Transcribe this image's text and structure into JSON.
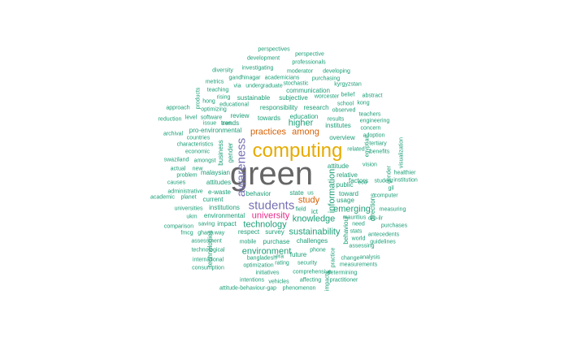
{
  "colors": {
    "teal": "#1b9e77",
    "grey": "#666666",
    "orange": "#d95f02",
    "gold": "#e6ab02",
    "purple": "#7570b3",
    "magenta": "#e7298a"
  },
  "words": [
    {
      "text": "green",
      "color": "grey"
    },
    {
      "text": "computing",
      "color": "gold"
    },
    {
      "text": "awareness",
      "color": "purple"
    },
    {
      "text": "students",
      "color": "purple"
    },
    {
      "text": "university",
      "color": "magenta"
    },
    {
      "text": "study",
      "color": "orange"
    },
    {
      "text": "practices",
      "color": "orange"
    },
    {
      "text": "among",
      "color": "orange"
    },
    {
      "text": "information",
      "color": "teal"
    },
    {
      "text": "technology",
      "color": "teal"
    },
    {
      "text": "knowledge",
      "color": "teal"
    },
    {
      "text": "sustainability",
      "color": "teal"
    },
    {
      "text": "environment",
      "color": "teal"
    },
    {
      "text": "emerging",
      "color": "teal"
    },
    {
      "text": "higher",
      "color": "teal"
    },
    {
      "text": "education",
      "color": "teal"
    },
    {
      "text": "institutes",
      "color": "teal"
    },
    {
      "text": "overview",
      "color": "teal"
    },
    {
      "text": "attitude",
      "color": "teal"
    },
    {
      "text": "relative",
      "color": "teal"
    },
    {
      "text": "public",
      "color": "teal"
    },
    {
      "text": "factors",
      "color": "teal"
    },
    {
      "text": "toward",
      "color": "teal"
    },
    {
      "text": "usage",
      "color": "teal"
    },
    {
      "text": "behavior",
      "color": "teal"
    },
    {
      "text": "state",
      "color": "teal"
    },
    {
      "text": "us",
      "color": "teal"
    },
    {
      "text": "ict",
      "color": "teal"
    },
    {
      "text": "review",
      "color": "teal"
    },
    {
      "text": "towards",
      "color": "teal"
    },
    {
      "text": "trends",
      "color": "teal"
    },
    {
      "text": "pro-environmental",
      "color": "teal"
    },
    {
      "text": "malaysian",
      "color": "teal"
    },
    {
      "text": "attitudes",
      "color": "teal"
    },
    {
      "text": "e-waste",
      "color": "teal"
    },
    {
      "text": "current",
      "color": "teal"
    },
    {
      "text": "institutions",
      "color": "teal"
    },
    {
      "text": "environmental",
      "color": "teal"
    },
    {
      "text": "impact",
      "color": "teal"
    },
    {
      "text": "respect",
      "color": "teal"
    },
    {
      "text": "survey",
      "color": "teal"
    },
    {
      "text": "purchase",
      "color": "teal"
    },
    {
      "text": "challenges",
      "color": "teal"
    },
    {
      "text": "future",
      "color": "teal"
    },
    {
      "text": "responsibility",
      "color": "teal"
    },
    {
      "text": "research",
      "color": "teal"
    },
    {
      "text": "sustainable",
      "color": "teal"
    },
    {
      "text": "subjective",
      "color": "teal"
    },
    {
      "text": "communication",
      "color": "teal"
    },
    {
      "text": "business",
      "color": "teal"
    },
    {
      "text": "gender",
      "color": "teal"
    },
    {
      "text": "directions",
      "color": "teal"
    },
    {
      "text": "behaviour",
      "color": "teal"
    },
    {
      "text": "technologies",
      "color": "teal"
    },
    {
      "text": "perspectives",
      "color": "teal"
    },
    {
      "text": "perspective",
      "color": "teal"
    },
    {
      "text": "development",
      "color": "teal"
    },
    {
      "text": "professionals",
      "color": "teal"
    },
    {
      "text": "diversity",
      "color": "teal"
    },
    {
      "text": "investigating",
      "color": "teal"
    },
    {
      "text": "moderator",
      "color": "teal"
    },
    {
      "text": "developing",
      "color": "teal"
    },
    {
      "text": "gandhinagar",
      "color": "teal"
    },
    {
      "text": "academicians",
      "color": "teal"
    },
    {
      "text": "purchasing",
      "color": "teal"
    },
    {
      "text": "metrics",
      "color": "teal"
    },
    {
      "text": "via",
      "color": "teal"
    },
    {
      "text": "undergraduate",
      "color": "teal"
    },
    {
      "text": "stochastic",
      "color": "teal"
    },
    {
      "text": "kyrgyzstan",
      "color": "teal"
    },
    {
      "text": "teaching",
      "color": "teal"
    },
    {
      "text": "worcester",
      "color": "teal"
    },
    {
      "text": "belief",
      "color": "teal"
    },
    {
      "text": "abstract",
      "color": "teal"
    },
    {
      "text": "products",
      "color": "teal"
    },
    {
      "text": "rising",
      "color": "teal"
    },
    {
      "text": "hong",
      "color": "teal"
    },
    {
      "text": "educational",
      "color": "teal"
    },
    {
      "text": "school",
      "color": "teal"
    },
    {
      "text": "kong",
      "color": "teal"
    },
    {
      "text": "approach",
      "color": "teal"
    },
    {
      "text": "optimizing",
      "color": "teal"
    },
    {
      "text": "observed",
      "color": "teal"
    },
    {
      "text": "teachers",
      "color": "teal"
    },
    {
      "text": "reduction",
      "color": "teal"
    },
    {
      "text": "level",
      "color": "teal"
    },
    {
      "text": "software",
      "color": "teal"
    },
    {
      "text": "issue",
      "color": "teal"
    },
    {
      "text": "can",
      "color": "teal"
    },
    {
      "text": "results",
      "color": "teal"
    },
    {
      "text": "engineering",
      "color": "teal"
    },
    {
      "text": "archival",
      "color": "teal"
    },
    {
      "text": "concern",
      "color": "teal"
    },
    {
      "text": "adoption",
      "color": "teal"
    },
    {
      "text": "countries",
      "color": "teal"
    },
    {
      "text": "characteristics",
      "color": "teal"
    },
    {
      "text": "tertiary",
      "color": "teal"
    },
    {
      "text": "economic",
      "color": "teal"
    },
    {
      "text": "benefits",
      "color": "teal"
    },
    {
      "text": "related",
      "color": "teal"
    },
    {
      "text": "egyptian",
      "color": "teal"
    },
    {
      "text": "visualization",
      "color": "teal"
    },
    {
      "text": "swaziland",
      "color": "teal"
    },
    {
      "text": "amongst",
      "color": "teal"
    },
    {
      "text": "vision",
      "color": "teal"
    },
    {
      "text": "actual",
      "color": "teal"
    },
    {
      "text": "new",
      "color": "teal"
    },
    {
      "text": "problem",
      "color": "teal"
    },
    {
      "text": "eco",
      "color": "teal"
    },
    {
      "text": "healthier",
      "color": "teal"
    },
    {
      "text": "gender",
      "color": "teal"
    },
    {
      "text": "institution",
      "color": "teal"
    },
    {
      "text": "causes",
      "color": "teal"
    },
    {
      "text": "student",
      "color": "teal"
    },
    {
      "text": "gil",
      "color": "teal"
    },
    {
      "text": "administrative",
      "color": "teal"
    },
    {
      "text": "academic",
      "color": "teal"
    },
    {
      "text": "planet",
      "color": "teal"
    },
    {
      "text": "computer",
      "color": "teal"
    },
    {
      "text": "universities",
      "color": "teal"
    },
    {
      "text": "field",
      "color": "teal"
    },
    {
      "text": "mauritius",
      "color": "teal"
    },
    {
      "text": "ukm",
      "color": "teal"
    },
    {
      "text": "need",
      "color": "teal"
    },
    {
      "text": "drp-ilr",
      "color": "teal"
    },
    {
      "text": "comparison",
      "color": "teal"
    },
    {
      "text": "saving",
      "color": "teal"
    },
    {
      "text": "stats",
      "color": "teal"
    },
    {
      "text": "purchases",
      "color": "teal"
    },
    {
      "text": "fmcg",
      "color": "teal"
    },
    {
      "text": "ghana",
      "color": "teal"
    },
    {
      "text": "way",
      "color": "teal"
    },
    {
      "text": "world",
      "color": "teal"
    },
    {
      "text": "antecedents",
      "color": "teal"
    },
    {
      "text": "assessing",
      "color": "teal"
    },
    {
      "text": "guidelines",
      "color": "teal"
    },
    {
      "text": "assessment",
      "color": "teal"
    },
    {
      "text": "mobile",
      "color": "teal"
    },
    {
      "text": "phone",
      "color": "teal"
    },
    {
      "text": "practice",
      "color": "teal"
    },
    {
      "text": "technological",
      "color": "teal"
    },
    {
      "text": "bangladesh",
      "color": "teal"
    },
    {
      "text": "era",
      "color": "teal"
    },
    {
      "text": "change",
      "color": "teal"
    },
    {
      "text": "analysis",
      "color": "teal"
    },
    {
      "text": "international",
      "color": "teal"
    },
    {
      "text": "rating",
      "color": "teal"
    },
    {
      "text": "security",
      "color": "teal"
    },
    {
      "text": "measurements",
      "color": "teal"
    },
    {
      "text": "consumption",
      "color": "teal"
    },
    {
      "text": "optimization",
      "color": "teal"
    },
    {
      "text": "comprehensive",
      "color": "teal"
    },
    {
      "text": "initiatives",
      "color": "teal"
    },
    {
      "text": "determining",
      "color": "teal"
    },
    {
      "text": "intentions",
      "color": "teal"
    },
    {
      "text": "vehicles",
      "color": "teal"
    },
    {
      "text": "affecting",
      "color": "teal"
    },
    {
      "text": "practitioner",
      "color": "teal"
    },
    {
      "text": "attitude-behaviour-gap",
      "color": "teal"
    },
    {
      "text": "phenomenon",
      "color": "teal"
    },
    {
      "text": "impacts",
      "color": "teal"
    },
    {
      "text": "measuring",
      "color": "teal"
    }
  ]
}
